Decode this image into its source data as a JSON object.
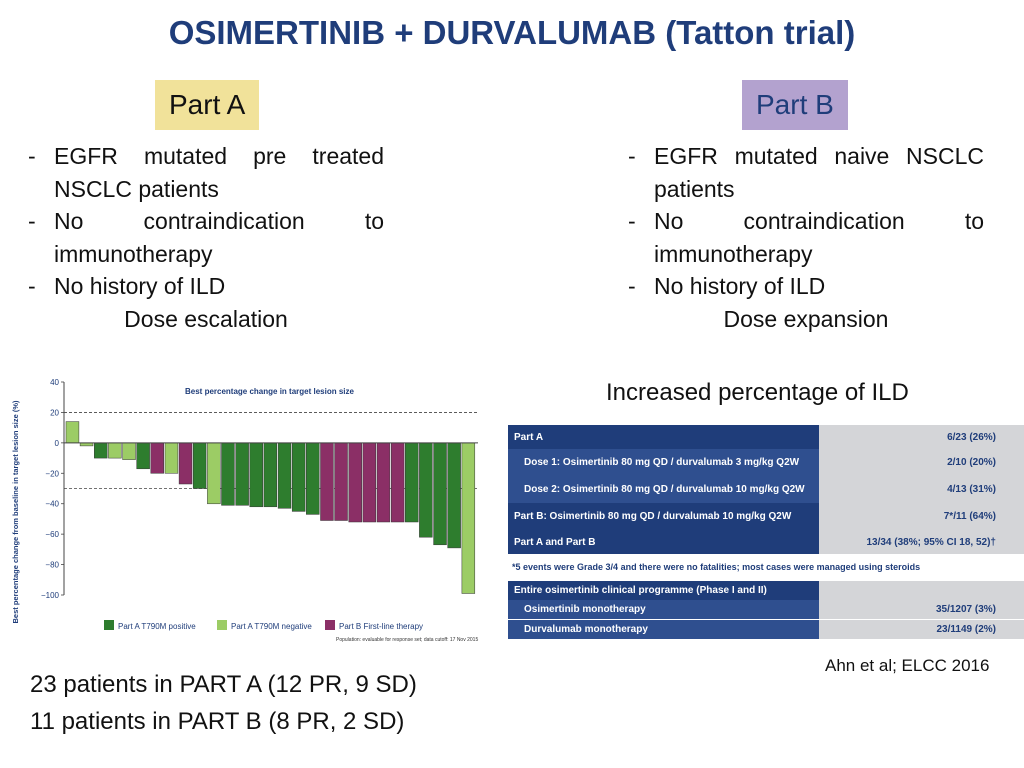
{
  "title": "OSIMERTINIB + DURVALUMAB (Tatton trial)",
  "part_a": {
    "label": "Part A",
    "bullets": [
      {
        "first": "EGFR mutated pre treated",
        "rest": "NSCLC patients"
      },
      {
        "first": "No contraindication to",
        "rest": "immunotherapy"
      },
      {
        "first": "No history of ILD",
        "rest": ""
      }
    ],
    "phase": "Dose escalation"
  },
  "part_b": {
    "label": "Part B",
    "bullets": [
      {
        "first": "EGFR mutated naive NSCLC",
        "rest": "patients"
      },
      {
        "first": "No contraindication to",
        "rest": "immunotherapy"
      },
      {
        "first": "No history of ILD",
        "rest": ""
      }
    ],
    "phase": "Dose expansion"
  },
  "ild_title": "Increased percentage of ILD",
  "ild_table": {
    "rows": [
      {
        "label": "Part A",
        "value": "6/23 (26%)",
        "style": "dark"
      },
      {
        "label": "Dose 1: Osimertinib 80 mg QD / durvalumab 3 mg/kg Q2W",
        "value": "2/10 (20%)",
        "style": "light"
      },
      {
        "label": "Dose 2: Osimertinib 80 mg QD / durvalumab 10 mg/kg Q2W",
        "value": "4/13 (31%)",
        "style": "light"
      },
      {
        "label": "Part B: Osimertinib 80 mg QD / durvalumab 10 mg/kg Q2W",
        "value": "7*/11 (64%)",
        "style": "dark"
      },
      {
        "label": "Part A and Part B",
        "value": "13/34 (38%; 95% CI 18, 52)†",
        "style": "dark"
      },
      {
        "label": "Entire osimertinib clinical programme (Phase I and II)",
        "value": "",
        "style": "dark"
      },
      {
        "label": "Osimertinib monotherapy",
        "value": "35/1207 (3%)",
        "style": "light"
      },
      {
        "label": "Durvalumab monotherapy",
        "value": "23/1149 (2%)",
        "style": "light"
      }
    ],
    "note": "*5 events were Grade 3/4 and there were no fatalities; most cases were managed using steroids"
  },
  "patients": [
    "23 patients in PART A (12 PR, 9 SD)",
    "11 patients in PART B (8 PR, 2 SD)"
  ],
  "citation": "Ahn et al; ELCC 2016",
  "chart_data": {
    "type": "bar",
    "title": "Best percentage change in target lesion size",
    "ylabel": "Best percentage change from baseline in target lesion size (%)",
    "ylim": [
      -100,
      40
    ],
    "yticks": [
      "40",
      "20",
      "0",
      "−20",
      "−40",
      "−60",
      "−80",
      "−100"
    ],
    "ytick_values": [
      40,
      20,
      0,
      -20,
      -40,
      -60,
      -80,
      -100
    ],
    "reference_lines": [
      20,
      -30
    ],
    "values": [
      14,
      -2,
      -10,
      -10,
      -11,
      -17,
      -20,
      -20,
      -27,
      -30,
      -40,
      -41,
      -41,
      -42,
      -42,
      -43,
      -45,
      -47,
      -51,
      -51,
      -52,
      -52,
      -52,
      -52,
      -52,
      -62,
      -67,
      -69,
      -99
    ],
    "groups": [
      "neg",
      "neg",
      "pos",
      "neg",
      "neg",
      "pos",
      "b",
      "neg",
      "b",
      "pos",
      "neg",
      "pos",
      "pos",
      "pos",
      "pos",
      "pos",
      "pos",
      "pos",
      "b",
      "b",
      "b",
      "b",
      "b",
      "b",
      "pos",
      "pos",
      "pos",
      "pos",
      "neg"
    ],
    "legend": [
      {
        "key": "pos",
        "label": "Part A T790M positive",
        "color": "#2e7d2e"
      },
      {
        "key": "neg",
        "label": "Part A T790M negative",
        "color": "#9ccc65"
      },
      {
        "key": "b",
        "label": "Part B First-line therapy",
        "color": "#8b2f66"
      }
    ],
    "footnote": "Population: evaluable for response set; data cutoff: 17 Nov 2015"
  }
}
